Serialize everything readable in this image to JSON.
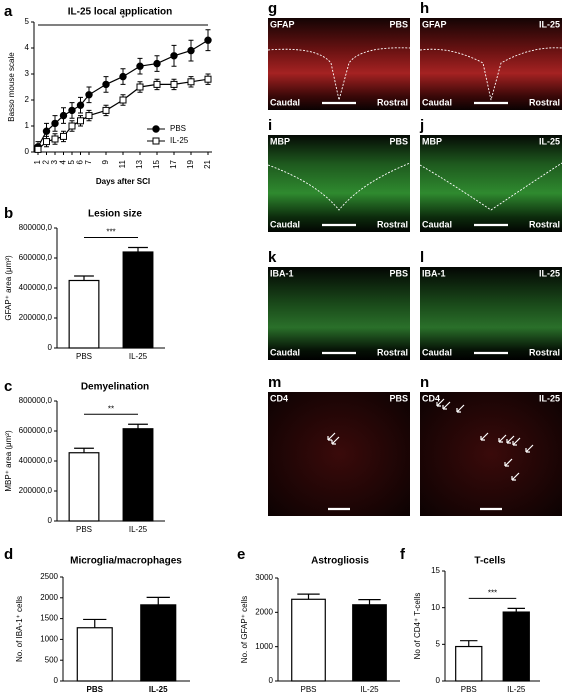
{
  "chart_data": [
    {
      "type": "line",
      "panel": "a",
      "title": "IL-25 local application",
      "xlabel": "Days after SCI",
      "ylabel": "Basso mouse scale",
      "x": [
        1,
        2,
        3,
        4,
        5,
        6,
        7,
        9,
        11,
        13,
        15,
        17,
        19,
        21
      ],
      "xlim": [
        1,
        21
      ],
      "xticks": [
        1,
        2,
        3,
        4,
        5,
        6,
        7,
        9,
        11,
        13,
        15,
        17,
        19,
        21
      ],
      "ylim": [
        0,
        5
      ],
      "yticks": [
        0,
        1,
        2,
        3,
        4,
        5
      ],
      "series": [
        {
          "name": "PBS",
          "color": "#000000",
          "marker": "circle",
          "values": [
            0.2,
            0.8,
            1.1,
            1.4,
            1.6,
            1.8,
            2.2,
            2.6,
            2.9,
            3.3,
            3.4,
            3.7,
            3.9,
            4.3
          ],
          "errors": [
            0.2,
            0.3,
            0.3,
            0.3,
            0.3,
            0.3,
            0.3,
            0.3,
            0.3,
            0.3,
            0.3,
            0.4,
            0.4,
            0.4
          ]
        },
        {
          "name": "IL-25",
          "color": "#ffffff",
          "marker": "square",
          "values": [
            0.1,
            0.4,
            0.5,
            0.6,
            1.0,
            1.2,
            1.4,
            1.6,
            2.0,
            2.5,
            2.6,
            2.6,
            2.7,
            2.8
          ],
          "errors": [
            0.1,
            0.2,
            0.2,
            0.2,
            0.2,
            0.2,
            0.2,
            0.2,
            0.2,
            0.2,
            0.2,
            0.2,
            0.2,
            0.2
          ]
        }
      ],
      "annotation": "*"
    },
    {
      "type": "bar",
      "panel": "b",
      "title": "Lesion size",
      "ylabel": "GFAP⁺ area (μm²)",
      "categories": [
        "PBS",
        "IL-25"
      ],
      "values": [
        450000,
        640000
      ],
      "errors": [
        30000,
        30000
      ],
      "colors": [
        "#ffffff",
        "#000000"
      ],
      "ylim": [
        0,
        800000
      ],
      "yticks": [
        0,
        {
          "value": 200000,
          "label": "200000,0"
        },
        {
          "value": 400000,
          "label": "400000,0"
        },
        {
          "value": 600000,
          "label": "600000,0"
        },
        {
          "value": 800000,
          "label": "800000,0"
        }
      ],
      "annotation": "***"
    },
    {
      "type": "bar",
      "panel": "c",
      "title": "Demyelination",
      "ylabel": "MBP⁺ area (μm²)",
      "categories": [
        "PBS",
        "IL-25"
      ],
      "values": [
        455000,
        615000
      ],
      "errors": [
        30000,
        30000
      ],
      "colors": [
        "#ffffff",
        "#000000"
      ],
      "ylim": [
        0,
        800000
      ],
      "yticks": [
        0,
        {
          "value": 200000,
          "label": "200000,0"
        },
        {
          "value": 400000,
          "label": "400000,0"
        },
        {
          "value": 600000,
          "label": "600000,0"
        },
        {
          "value": 800000,
          "label": "800000,0"
        }
      ],
      "annotation": "**"
    },
    {
      "type": "bar",
      "panel": "d",
      "title": "Microglia/macrophages",
      "ylabel": "No. of IBA-1⁺ cells",
      "categories": [
        "PBS",
        "IL-25"
      ],
      "values": [
        1280,
        1830
      ],
      "errors": [
        200,
        180
      ],
      "colors": [
        "#ffffff",
        "#000000"
      ],
      "ylim": [
        0,
        2500
      ],
      "yticks": [
        0,
        500,
        1000,
        1500,
        2000,
        2500
      ]
    },
    {
      "type": "bar",
      "panel": "e",
      "title": "Astrogliosis",
      "ylabel": "No. of GFAP⁺ cells",
      "categories": [
        "PBS",
        "IL-25"
      ],
      "values": [
        2380,
        2220
      ],
      "errors": [
        150,
        150
      ],
      "colors": [
        "#ffffff",
        "#000000"
      ],
      "ylim": [
        0,
        3000
      ],
      "yticks": [
        0,
        1000,
        2000,
        3000
      ]
    },
    {
      "type": "bar",
      "panel": "f",
      "title": "T-cells",
      "ylabel": "No of CD4⁺ T-cells",
      "categories": [
        "PBS",
        "IL-25"
      ],
      "values": [
        4.7,
        9.4
      ],
      "errors": [
        0.8,
        0.5
      ],
      "colors": [
        "#ffffff",
        "#000000"
      ],
      "ylim": [
        0,
        15
      ],
      "yticks": [
        0,
        5,
        10,
        15
      ],
      "annotation": "***"
    }
  ],
  "micrographs": [
    {
      "panel": "g",
      "stain": "GFAP",
      "condition": "PBS",
      "left": "Caudal",
      "right": "Rostral"
    },
    {
      "panel": "h",
      "stain": "GFAP",
      "condition": "IL-25",
      "left": "Caudal",
      "right": "Rostral"
    },
    {
      "panel": "i",
      "stain": "MBP",
      "condition": "PBS",
      "left": "Caudal",
      "right": "Rostral"
    },
    {
      "panel": "j",
      "stain": "MBP",
      "condition": "IL-25",
      "left": "Caudal",
      "right": "Rostral"
    },
    {
      "panel": "k",
      "stain": "IBA-1",
      "condition": "PBS",
      "left": "Caudal",
      "right": "Rostral"
    },
    {
      "panel": "l",
      "stain": "IBA-1",
      "condition": "IL-25",
      "left": "Caudal",
      "right": "Rostral"
    },
    {
      "panel": "m",
      "stain": "CD4",
      "condition": "PBS"
    },
    {
      "panel": "n",
      "stain": "CD4",
      "condition": "IL-25"
    }
  ]
}
